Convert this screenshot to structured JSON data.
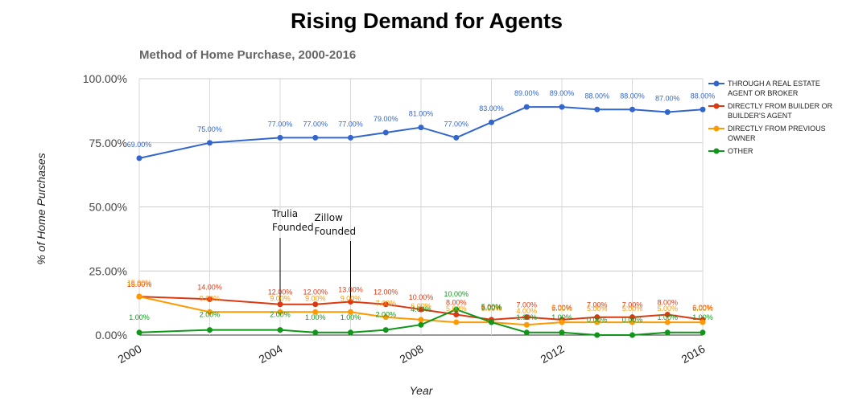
{
  "chart_data": {
    "type": "line",
    "title": "Rising Demand for Agents",
    "subtitle": "Method of Home Purchase, 2000-2016",
    "xlabel": "Year",
    "ylabel": "% of Home Purchases",
    "xlim": [
      2000,
      2016
    ],
    "ylim": [
      0,
      100
    ],
    "x_ticks": [
      "2000",
      "2004",
      "2008",
      "2012",
      "2016"
    ],
    "y_ticks": [
      "0.00%",
      "25.00%",
      "50.00%",
      "75.00%",
      "100.00%"
    ],
    "grid": true,
    "legend_position": "right",
    "x": [
      2000,
      2002,
      2004,
      2005,
      2006,
      2007,
      2008,
      2009,
      2010,
      2011,
      2012,
      2013,
      2014,
      2015,
      2016
    ],
    "series": [
      {
        "name": "THROUGH A REAL ESTATE AGENT OR BROKER",
        "color": "#3366cc",
        "values": [
          69,
          75,
          77,
          77,
          77,
          79,
          81,
          77,
          83,
          89,
          89,
          88,
          88,
          87,
          88
        ]
      },
      {
        "name": "DIRECTLY FROM BUILDER OR BUILDER'S AGENT",
        "color": "#dc3912",
        "values": [
          15,
          14,
          12,
          12,
          13,
          12,
          10,
          8,
          6,
          7,
          6,
          7,
          7,
          8,
          6
        ]
      },
      {
        "name": "DIRECTLY FROM PREVIOUS OWNER",
        "color": "#ff9900",
        "values": [
          15,
          9,
          9,
          9,
          9,
          7,
          6,
          5,
          5,
          4,
          5,
          5,
          5,
          5,
          5
        ]
      },
      {
        "name": "OTHER",
        "color": "#109618",
        "values": [
          1,
          2,
          2,
          1,
          1,
          2,
          4,
          10,
          5,
          1,
          1,
          0,
          0,
          1,
          1
        ]
      }
    ],
    "annotations": [
      {
        "x": 2004,
        "lines": [
          "Trulia",
          "Founded"
        ]
      },
      {
        "x": 2006,
        "lines": [
          "Zillow",
          "Founded"
        ]
      }
    ]
  }
}
